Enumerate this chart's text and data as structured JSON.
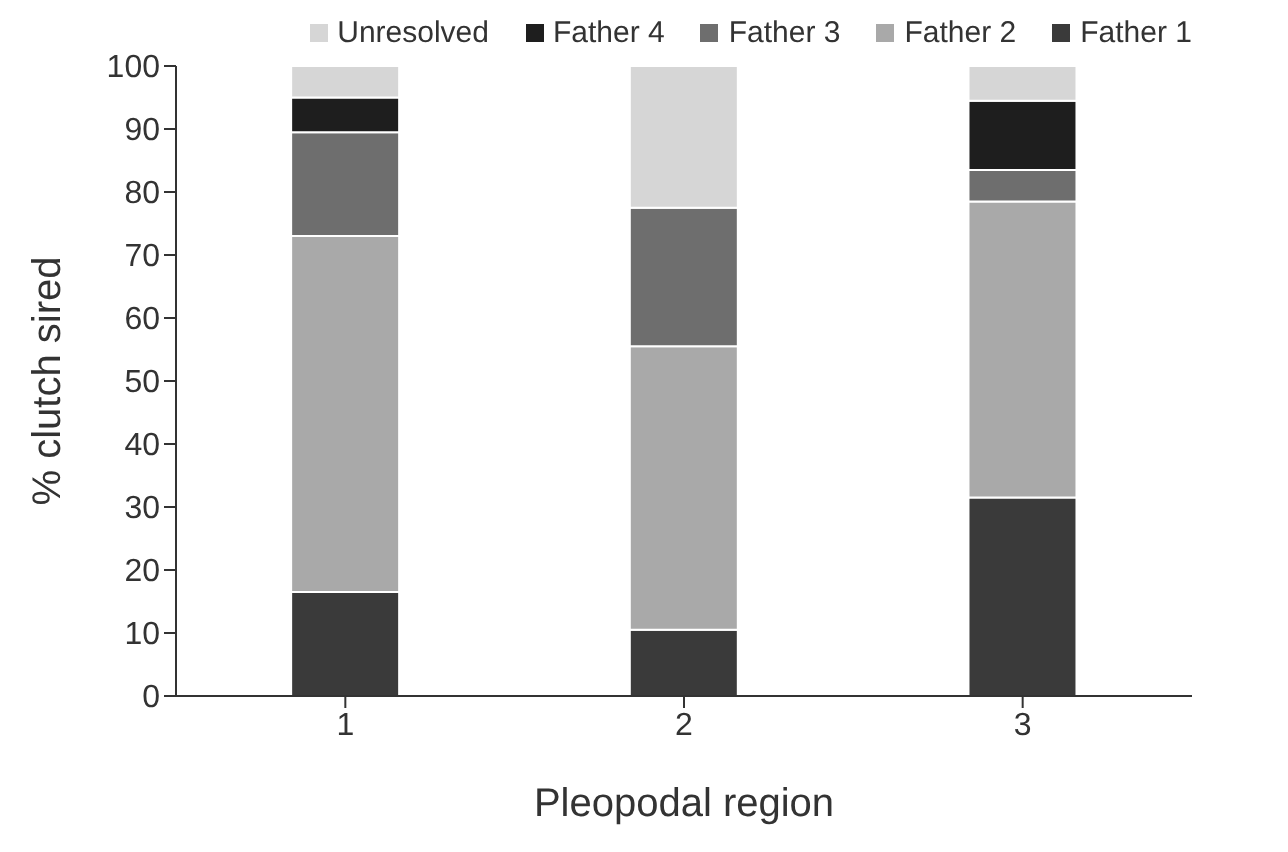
{
  "chart_data": {
    "type": "bar",
    "stacked": true,
    "xlabel": "Pleopodal region",
    "ylabel": "% clutch sired",
    "categories": [
      "1",
      "2",
      "3"
    ],
    "series": [
      {
        "name": "Father 1",
        "color": "#3a3a3a",
        "values": [
          16.5,
          10.5,
          31.5
        ]
      },
      {
        "name": "Father 2",
        "color": "#a9a9a9",
        "values": [
          56.5,
          45,
          47
        ]
      },
      {
        "name": "Father 3",
        "color": "#6e6e6e",
        "values": [
          16.5,
          22,
          5
        ]
      },
      {
        "name": "Father 4",
        "color": "#1e1e1e",
        "values": [
          5.5,
          0,
          11
        ]
      },
      {
        "name": "Unresolved",
        "color": "#d6d6d6",
        "values": [
          5,
          22.5,
          5.5
        ]
      }
    ],
    "ylim": [
      0,
      100
    ],
    "yticks": [
      0,
      10,
      20,
      30,
      40,
      50,
      60,
      70,
      80,
      90,
      100
    ],
    "grid": false,
    "legend": "top"
  }
}
